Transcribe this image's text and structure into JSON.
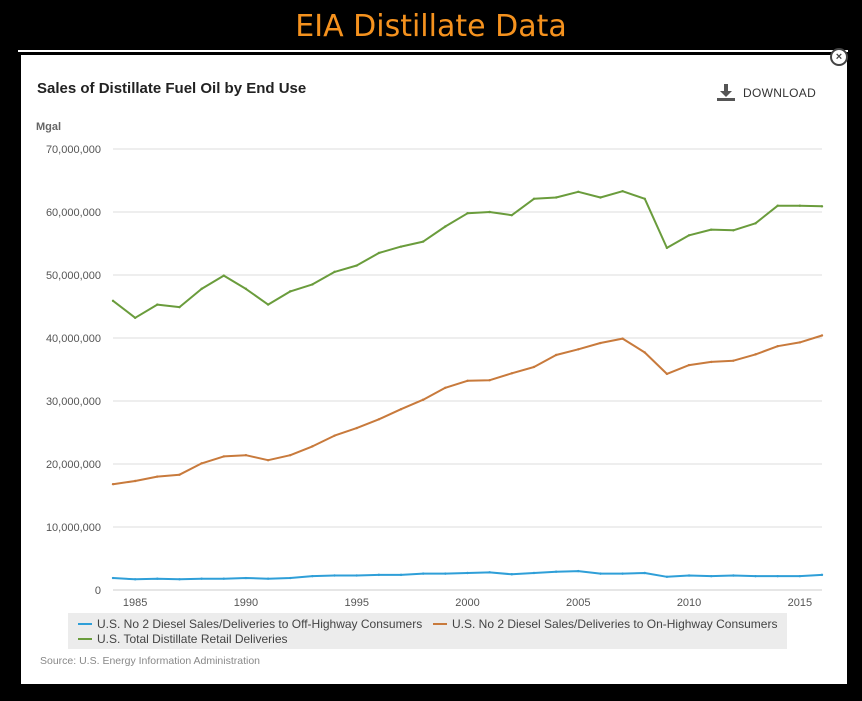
{
  "banner": {
    "title": "EIA Distillate Data"
  },
  "header": {
    "download_label": "DOWNLOAD"
  },
  "chart_data": {
    "type": "line",
    "title": "Sales of Distillate Fuel Oil by End Use",
    "ylabel": "Mgal",
    "xlabel": "",
    "xlim": [
      1984,
      2016
    ],
    "ylim": [
      0,
      70000000
    ],
    "x_ticks": [
      1985,
      1990,
      1995,
      2000,
      2005,
      2010,
      2015
    ],
    "x_tick_labels": [
      "1985",
      "1990",
      "1995",
      "2000",
      "2005",
      "2010",
      "2015"
    ],
    "y_ticks": [
      0,
      10000000,
      20000000,
      30000000,
      40000000,
      50000000,
      60000000,
      70000000
    ],
    "y_tick_labels": [
      "0",
      "10,000,000",
      "20,000,000",
      "30,000,000",
      "40,000,000",
      "50,000,000",
      "60,000,000",
      "70,000,000"
    ],
    "grid": "horizontal",
    "legend_position": "bottom",
    "x": [
      1984,
      1985,
      1986,
      1987,
      1988,
      1989,
      1990,
      1991,
      1992,
      1993,
      1994,
      1995,
      1996,
      1997,
      1998,
      1999,
      2000,
      2001,
      2002,
      2003,
      2004,
      2005,
      2006,
      2007,
      2008,
      2009,
      2010,
      2011,
      2012,
      2013,
      2014,
      2015,
      2016
    ],
    "series": [
      {
        "name": "U.S. No 2 Diesel Sales/Deliveries to Off-Highway Consumers",
        "color": "#2f9fd8",
        "values": [
          1900000,
          1700000,
          1800000,
          1700000,
          1800000,
          1800000,
          1900000,
          1800000,
          1900000,
          2200000,
          2300000,
          2300000,
          2400000,
          2400000,
          2600000,
          2600000,
          2700000,
          2800000,
          2500000,
          2700000,
          2900000,
          3000000,
          2600000,
          2600000,
          2700000,
          2100000,
          2300000,
          2200000,
          2300000,
          2200000,
          2200000,
          2200000,
          2400000
        ]
      },
      {
        "name": "U.S. No 2 Diesel Sales/Deliveries to On-Highway Consumers",
        "color": "#c87a3c",
        "values": [
          16800000,
          17300000,
          18000000,
          18300000,
          20100000,
          21200000,
          21400000,
          20600000,
          21400000,
          22800000,
          24500000,
          25700000,
          27100000,
          28700000,
          30200000,
          32100000,
          33200000,
          33300000,
          34400000,
          35400000,
          37300000,
          38200000,
          39200000,
          39900000,
          37700000,
          34300000,
          35700000,
          36200000,
          36400000,
          37400000,
          38700000,
          39300000,
          40400000
        ]
      },
      {
        "name": "U.S. Total Distillate Retail Deliveries",
        "color": "#6a9c3c",
        "values": [
          45900000,
          43200000,
          45300000,
          44900000,
          47800000,
          49900000,
          47800000,
          45300000,
          47400000,
          48500000,
          50500000,
          51500000,
          53500000,
          54500000,
          55300000,
          57700000,
          59800000,
          60000000,
          59500000,
          62100000,
          62300000,
          63200000,
          62300000,
          63300000,
          62100000,
          54300000,
          56300000,
          57200000,
          57100000,
          58200000,
          61000000,
          61000000,
          60900000
        ]
      }
    ]
  },
  "source": "Source: U.S. Energy Information Administration"
}
